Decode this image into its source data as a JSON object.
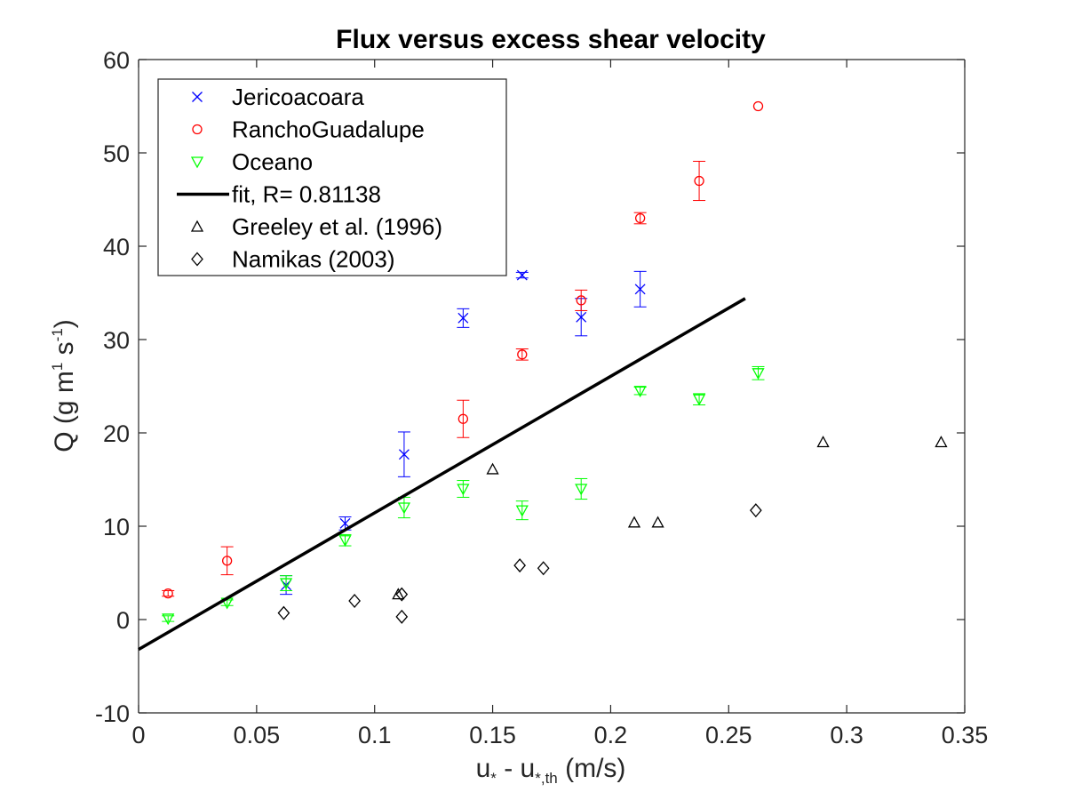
{
  "chart_data": {
    "type": "scatter",
    "title": "Flux versus excess shear velocity",
    "xlabel": {
      "base": "u",
      "sub1": "*",
      "mid": " - u",
      "sub2": "*,th",
      "tail": " (m/s)"
    },
    "ylabel": {
      "pre": "Q (g m",
      "sup1": "1",
      "mid": " s",
      "sup2": "-1",
      "post": ")"
    },
    "xlim": [
      0,
      0.35
    ],
    "ylim": [
      -10,
      60
    ],
    "xticks": [
      0,
      0.05,
      0.1,
      0.15,
      0.2,
      0.25,
      0.3,
      0.35
    ],
    "xtick_labels": [
      "0",
      "0.05",
      "0.1",
      "0.15",
      "0.2",
      "0.25",
      "0.3",
      "0.35"
    ],
    "yticks": [
      -10,
      0,
      10,
      20,
      30,
      40,
      50,
      60
    ],
    "ytick_labels": [
      "-10",
      "0",
      "10",
      "20",
      "30",
      "40",
      "50",
      "60"
    ],
    "grid": false,
    "legend_position": "top-left",
    "series": [
      {
        "name": "Jericoacoara",
        "marker": "x",
        "color": "#0000ff",
        "points": [
          {
            "x": 0.0625,
            "y": 3.7,
            "err": 1.0
          },
          {
            "x": 0.0875,
            "y": 10.3,
            "err": 0.7
          },
          {
            "x": 0.1125,
            "y": 17.7,
            "err": 2.4
          },
          {
            "x": 0.1375,
            "y": 32.3,
            "err": 1.0
          },
          {
            "x": 0.1625,
            "y": 36.9,
            "err": 0.3
          },
          {
            "x": 0.1875,
            "y": 32.4,
            "err": 2.0
          },
          {
            "x": 0.2125,
            "y": 35.4,
            "err": 1.9
          }
        ]
      },
      {
        "name": "RanchoGuadalupe",
        "marker": "o",
        "color": "#ff0000",
        "points": [
          {
            "x": 0.0125,
            "y": 2.8,
            "err": 0.3
          },
          {
            "x": 0.0375,
            "y": 6.3,
            "err": 1.5
          },
          {
            "x": 0.1375,
            "y": 21.5,
            "err": 2.0
          },
          {
            "x": 0.1625,
            "y": 28.4,
            "err": 0.6
          },
          {
            "x": 0.1875,
            "y": 34.2,
            "err": 1.1
          },
          {
            "x": 0.2125,
            "y": 43.0,
            "err": 0.6
          },
          {
            "x": 0.2375,
            "y": 47.0,
            "err": 2.1
          },
          {
            "x": 0.2625,
            "y": 55.0,
            "err": 0
          }
        ]
      },
      {
        "name": "Oceano",
        "marker": "triangle-down",
        "color": "#00ff00",
        "points": [
          {
            "x": 0.0125,
            "y": 0.1,
            "err": 0.3
          },
          {
            "x": 0.0375,
            "y": 1.8,
            "err": 0.3
          },
          {
            "x": 0.0625,
            "y": 3.9,
            "err": 0.8
          },
          {
            "x": 0.0875,
            "y": 8.5,
            "err": 0.6
          },
          {
            "x": 0.1125,
            "y": 12.0,
            "err": 1.1
          },
          {
            "x": 0.1375,
            "y": 14.0,
            "err": 0.9
          },
          {
            "x": 0.1625,
            "y": 11.7,
            "err": 1.0
          },
          {
            "x": 0.1875,
            "y": 14.0,
            "err": 1.1
          },
          {
            "x": 0.2125,
            "y": 24.5,
            "err": 0.4
          },
          {
            "x": 0.2375,
            "y": 23.6,
            "err": 0.6
          },
          {
            "x": 0.2625,
            "y": 26.4,
            "err": 0.7
          }
        ]
      },
      {
        "name": "fit, R= 0.81138",
        "marker": "line",
        "color": "#000000",
        "line": {
          "x": [
            0,
            0.257
          ],
          "y": [
            -3.2,
            34.4
          ]
        }
      },
      {
        "name": "Greeley et al. (1996)",
        "marker": "triangle-up",
        "color": "#000000",
        "points": [
          {
            "x": 0.11,
            "y": 2.7
          },
          {
            "x": 0.15,
            "y": 16.1
          },
          {
            "x": 0.21,
            "y": 10.4
          },
          {
            "x": 0.22,
            "y": 10.4
          },
          {
            "x": 0.29,
            "y": 19.0
          },
          {
            "x": 0.34,
            "y": 19.0
          }
        ]
      },
      {
        "name": "Namikas (2003)",
        "marker": "diamond",
        "color": "#000000",
        "points": [
          {
            "x": 0.0615,
            "y": 0.7
          },
          {
            "x": 0.0915,
            "y": 2.0
          },
          {
            "x": 0.1115,
            "y": 2.7
          },
          {
            "x": 0.1115,
            "y": 0.3
          },
          {
            "x": 0.1615,
            "y": 5.8
          },
          {
            "x": 0.1715,
            "y": 5.5
          },
          {
            "x": 0.2615,
            "y": 11.7
          }
        ]
      }
    ]
  }
}
